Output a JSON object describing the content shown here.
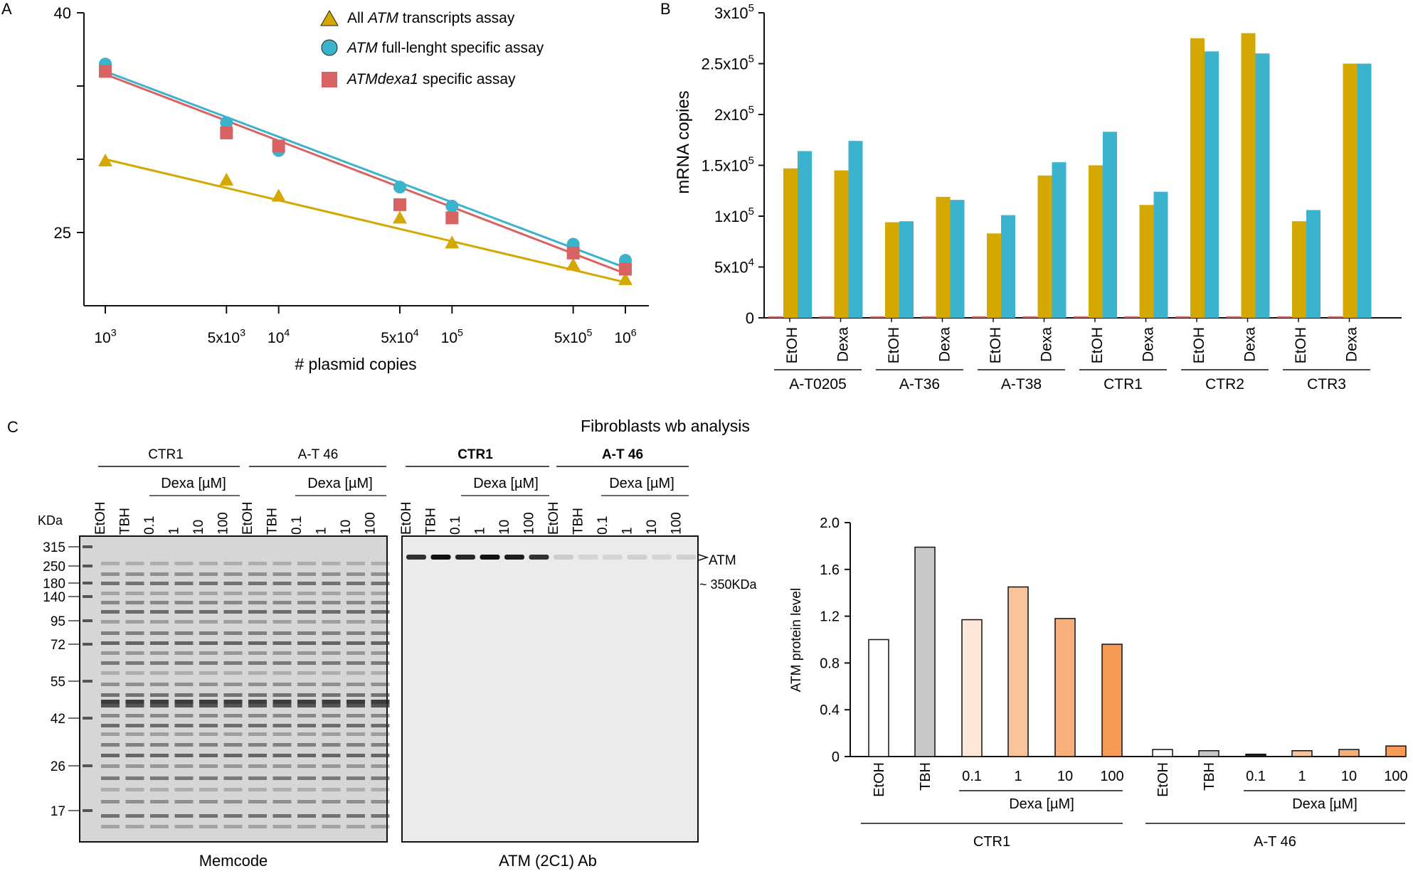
{
  "colors": {
    "gold": "#d4a800",
    "cyan": "#3bb3cc",
    "red": "#d96262",
    "axis": "#111111",
    "gel_bg": "#d9d9d9",
    "wb_bg": "#ededed"
  },
  "chart_data": [
    {
      "panel": "A",
      "type": "scatter",
      "xscale": "log10",
      "xlabel": "# plasmid copies",
      "ylabel": "",
      "xlim": [
        1000,
        1000000
      ],
      "ylim": [
        20,
        40
      ],
      "yticks": [
        "40",
        "",
        "",
        "25"
      ],
      "ytick_values": [
        40,
        35,
        30,
        25
      ],
      "xticks": [
        "10^3",
        "5x10^3",
        "10^4",
        "5x10^4",
        "10^5",
        "5x10^5",
        "10^6"
      ],
      "xtick_values": [
        1000,
        5000,
        10000,
        50000,
        100000,
        500000,
        1000000
      ],
      "x": [
        1000,
        5000,
        10000,
        50000,
        100000,
        500000,
        1000000
      ],
      "series": [
        {
          "name": "All ATM transcripts assay",
          "marker": "triangle",
          "color": "#d4a800",
          "values": [
            29.9,
            28.6,
            27.5,
            26.0,
            24.3,
            22.8,
            21.8
          ],
          "fit": [
            [
              1000,
              30.0
            ],
            [
              1000000,
              21.6
            ]
          ]
        },
        {
          "name": "ATM full-lenght specific assay",
          "marker": "circle",
          "color": "#3bb3cc",
          "values": [
            36.5,
            32.5,
            30.6,
            28.1,
            26.8,
            24.2,
            23.1
          ],
          "fit": [
            [
              1000,
              36.0
            ],
            [
              1000000,
              22.6
            ]
          ]
        },
        {
          "name": "ATMdexa1 specific assay",
          "marker": "square",
          "color": "#d96262",
          "values": [
            36.0,
            31.8,
            30.9,
            26.9,
            26.0,
            23.6,
            22.5
          ],
          "fit": [
            [
              1000,
              35.8
            ],
            [
              1000000,
              22.2
            ]
          ]
        }
      ],
      "legend_position": "top-right"
    },
    {
      "panel": "B",
      "type": "bar",
      "ylabel": "mRNA copies",
      "ylim": [
        0,
        300000
      ],
      "yticks": [
        "0",
        "5x10^4",
        "1x10^5",
        "1.5x10^5",
        "2x10^5",
        "2.5x10^5",
        "3x10^5"
      ],
      "ytick_values": [
        0,
        50000,
        100000,
        150000,
        200000,
        250000,
        300000
      ],
      "groups": [
        "A-T0205",
        "A-T36",
        "A-T38",
        "CTR1",
        "CTR2",
        "CTR3"
      ],
      "categories": [
        "EtOH",
        "Dexa",
        "EtOH",
        "Dexa",
        "EtOH",
        "Dexa",
        "EtOH",
        "Dexa",
        "EtOH",
        "Dexa",
        "EtOH",
        "Dexa"
      ],
      "series": [
        {
          "name": "ATMdexa1",
          "color": "#d96262",
          "values": [
            1500,
            1500,
            1500,
            1500,
            1500,
            1500,
            1500,
            1500,
            1500,
            1500,
            1500,
            1500
          ]
        },
        {
          "name": "All ATM transcripts",
          "color": "#d4a800",
          "values": [
            147000,
            145000,
            94000,
            119000,
            83000,
            140000,
            150000,
            111000,
            275000,
            280000,
            95000,
            250000
          ]
        },
        {
          "name": "ATM full-length",
          "color": "#3bb3cc",
          "values": [
            164000,
            174000,
            95000,
            116000,
            101000,
            153000,
            183000,
            124000,
            262000,
            260000,
            106000,
            250000
          ]
        }
      ]
    },
    {
      "panel": "C-bar",
      "type": "bar",
      "ylabel": "ATM protein level",
      "ylim": [
        0,
        2.0
      ],
      "yticks": [
        "0",
        "0.4",
        "0.8",
        "1.2",
        "1.6",
        "2.0"
      ],
      "ytick_values": [
        0,
        0.4,
        0.8,
        1.2,
        1.6,
        2.0
      ],
      "categories": [
        "EtOH",
        "TBH",
        "0.1",
        "1",
        "10",
        "100",
        "EtOH",
        "TBH",
        "0.1",
        "1",
        "10",
        "100"
      ],
      "values": [
        1.0,
        1.79,
        1.17,
        1.45,
        1.18,
        0.96,
        0.06,
        0.05,
        0.02,
        0.05,
        0.06,
        0.09
      ],
      "bar_colors": [
        "#ffffff",
        "#c8c8c8",
        "#fde7d8",
        "#f8c49c",
        "#f7b07c",
        "#f79a55",
        "#ffffff",
        "#c8c8c8",
        "#222222",
        "#f8c49c",
        "#f7b07c",
        "#f79a55"
      ],
      "dexa_label": "Dexa [µM]",
      "groups": [
        "CTR1",
        "A-T 46"
      ]
    }
  ],
  "panel_labels": {
    "a": "A",
    "b": "B",
    "c": "C"
  },
  "legend_html": {
    "l1_pre": "All ",
    "l1_it": "ATM",
    "l1_post": " transcripts assay",
    "l2_it": "ATM",
    "l2_post": " full-lenght specific assay",
    "l3_it": "ATMdexa1",
    "l3_post": " specific assay"
  },
  "blot": {
    "title": "Fibroblasts wb analysis",
    "group_ctr1": "CTR1",
    "group_at46": "A-T 46",
    "dexa_label": "Dexa [µM]",
    "lanes": [
      "EtOH",
      "TBH",
      "0.1",
      "1",
      "10",
      "100"
    ],
    "kda_label": "KDa",
    "markers": [
      "315",
      "250",
      "180",
      "140",
      "95",
      "72",
      "55",
      "42",
      "26",
      "17"
    ],
    "memcode_caption": "Memcode",
    "wb_caption": "ATM (2C1) Ab",
    "atm_label": "ATM",
    "atm_size": "~ 350KDa"
  }
}
